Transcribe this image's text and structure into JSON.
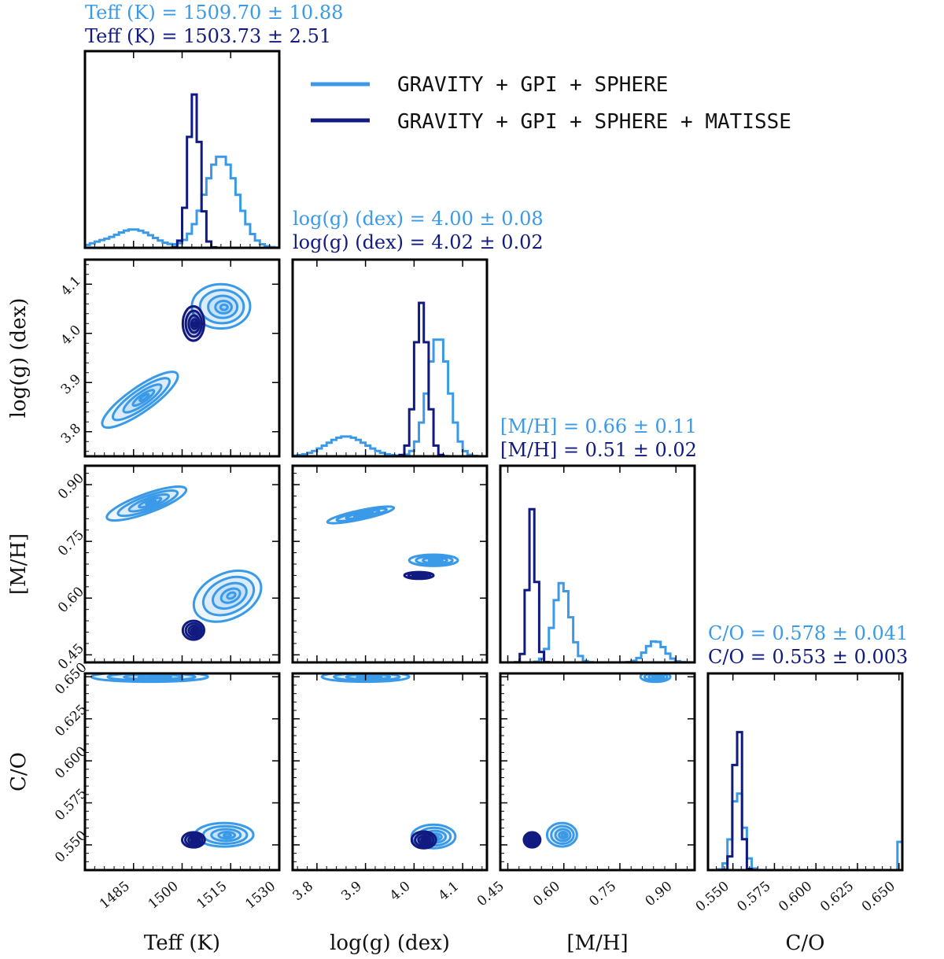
{
  "colors": {
    "light": "#3a9ae8",
    "dark": "#111a80",
    "light_fill": "#8fc4f0"
  },
  "chart_data": {
    "type": "corner",
    "legend": {
      "position": "top-right",
      "entries": [
        {
          "label": "GRAVITY + GPI + SPHERE",
          "color": "#3a9ae8"
        },
        {
          "label": "GRAVITY + GPI + SPHERE + MATISSE",
          "color": "#111a80"
        }
      ]
    },
    "parameters": [
      {
        "key": "teff",
        "label": "Teff (K)",
        "range": [
          1470,
          1530
        ],
        "ticks": [
          1485,
          1500,
          1515,
          1530
        ],
        "title_light": "Teff (K)  = 1509.70 ± 10.88",
        "title_dark": "Teff (K)  = 1503.73 ± 2.51",
        "median_light": 1509.7,
        "err_light": 10.88,
        "median_dark": 1503.73,
        "err_dark": 2.51
      },
      {
        "key": "logg",
        "label": "log(g) (dex)",
        "range": [
          3.75,
          4.15
        ],
        "ticks": [
          3.8,
          3.9,
          4.0,
          4.1
        ],
        "title_light": "log(g) (dex)  = 4.00 ± 0.08",
        "title_dark": "log(g) (dex)  = 4.02 ± 0.02",
        "median_light": 4.0,
        "err_light": 0.08,
        "median_dark": 4.02,
        "err_dark": 0.02
      },
      {
        "key": "mh",
        "label": "[M/H]",
        "range": [
          0.43,
          0.95
        ],
        "ticks": [
          0.45,
          0.6,
          0.75,
          0.9
        ],
        "title_light": "[M/H]   = 0.66 ± 0.11",
        "title_dark": "[M/H]   = 0.51 ± 0.02",
        "median_light": 0.66,
        "err_light": 0.11,
        "median_dark": 0.51,
        "err_dark": 0.02
      },
      {
        "key": "co",
        "label": "C/O",
        "range": [
          0.535,
          0.652
        ],
        "ticks": [
          0.55,
          0.575,
          0.6,
          0.625,
          0.65
        ],
        "title_light": "C/O   = 0.578 ± 0.041",
        "title_dark": "C/O   = 0.553 ± 0.003",
        "median_light": 0.578,
        "err_light": 0.041,
        "median_dark": 0.553,
        "err_dark": 0.003
      }
    ],
    "histograms": [
      {
        "param": "teff",
        "light": [
          {
            "c": 1474,
            "a": 0.02,
            "w": 3
          },
          {
            "c": 1485,
            "a": 0.12,
            "w": 6
          },
          {
            "c": 1512,
            "a": 0.6,
            "w": 5
          }
        ],
        "dark": [
          {
            "c": 1503.7,
            "a": 1.0,
            "w": 1.8
          }
        ]
      },
      {
        "param": "logg",
        "light": [
          {
            "c": 3.86,
            "a": 0.13,
            "w": 0.04
          },
          {
            "c": 4.05,
            "a": 0.78,
            "w": 0.022
          }
        ],
        "dark": [
          {
            "c": 4.015,
            "a": 1.0,
            "w": 0.013
          }
        ]
      },
      {
        "param": "mh",
        "light": [
          {
            "c": 0.595,
            "a": 0.52,
            "w": 0.022
          },
          {
            "c": 0.845,
            "a": 0.14,
            "w": 0.025
          }
        ],
        "dark": [
          {
            "c": 0.515,
            "a": 1.0,
            "w": 0.011
          }
        ]
      },
      {
        "param": "co",
        "light": [
          {
            "c": 0.553,
            "a": 0.52,
            "w": 0.0035
          },
          {
            "c": 0.652,
            "a": 0.98,
            "w": 0.0008
          }
        ],
        "dark": [
          {
            "c": 0.553,
            "a": 1.0,
            "w": 0.0022
          }
        ]
      }
    ],
    "contours": [
      {
        "x": "teff",
        "y": "logg",
        "light_blobs": [
          {
            "cx": 1512,
            "cy": 4.055,
            "rx": 9,
            "ry": 0.045,
            "rot": 0
          },
          {
            "cx": 1487,
            "cy": 3.865,
            "rx": 14,
            "ry": 0.025,
            "rot": -35
          }
        ],
        "dark_blobs": [
          {
            "cx": 1503.5,
            "cy": 4.02,
            "rx": 3.3,
            "ry": 0.035,
            "rot": 0
          }
        ]
      },
      {
        "x": "teff",
        "y": "mh",
        "light_blobs": [
          {
            "cx": 1514,
            "cy": 0.605,
            "rx": 11,
            "ry": 0.06,
            "rot": -25
          },
          {
            "cx": 1489,
            "cy": 0.85,
            "rx": 13,
            "ry": 0.025,
            "rot": -20
          }
        ],
        "dark_blobs": [
          {
            "cx": 1503.5,
            "cy": 0.515,
            "rx": 3.3,
            "ry": 0.025,
            "rot": 0
          }
        ]
      },
      {
        "x": "logg",
        "y": "mh",
        "light_blobs": [
          {
            "cx": 4.04,
            "cy": 0.7,
            "rx": 0.05,
            "ry": 0.015,
            "rot": 0
          },
          {
            "cx": 3.89,
            "cy": 0.82,
            "rx": 0.07,
            "ry": 0.012,
            "rot": -12
          }
        ],
        "dark_blobs": [
          {
            "cx": 4.01,
            "cy": 0.66,
            "rx": 0.03,
            "ry": 0.009,
            "rot": 0
          }
        ]
      },
      {
        "x": "teff",
        "y": "co",
        "light_blobs": [
          {
            "cx": 1513,
            "cy": 0.556,
            "rx": 9,
            "ry": 0.007,
            "rot": 0
          },
          {
            "cx": 1490,
            "cy": 0.65,
            "rx": 18,
            "ry": 0.003,
            "rot": 0
          }
        ],
        "dark_blobs": [
          {
            "cx": 1503.5,
            "cy": 0.553,
            "rx": 3.5,
            "ry": 0.0045,
            "rot": 0
          }
        ]
      },
      {
        "x": "logg",
        "y": "co",
        "light_blobs": [
          {
            "cx": 4.04,
            "cy": 0.555,
            "rx": 0.045,
            "ry": 0.007,
            "rot": 0
          },
          {
            "cx": 3.9,
            "cy": 0.65,
            "rx": 0.09,
            "ry": 0.003,
            "rot": 0
          }
        ],
        "dark_blobs": [
          {
            "cx": 4.02,
            "cy": 0.553,
            "rx": 0.025,
            "ry": 0.005,
            "rot": 0
          }
        ]
      },
      {
        "x": "mh",
        "y": "co",
        "light_blobs": [
          {
            "cx": 0.595,
            "cy": 0.556,
            "rx": 0.04,
            "ry": 0.007,
            "rot": 0
          },
          {
            "cx": 0.845,
            "cy": 0.65,
            "rx": 0.04,
            "ry": 0.003,
            "rot": 0
          }
        ],
        "dark_blobs": [
          {
            "cx": 0.515,
            "cy": 0.553,
            "rx": 0.022,
            "ry": 0.0045,
            "rot": 0
          }
        ]
      }
    ]
  }
}
